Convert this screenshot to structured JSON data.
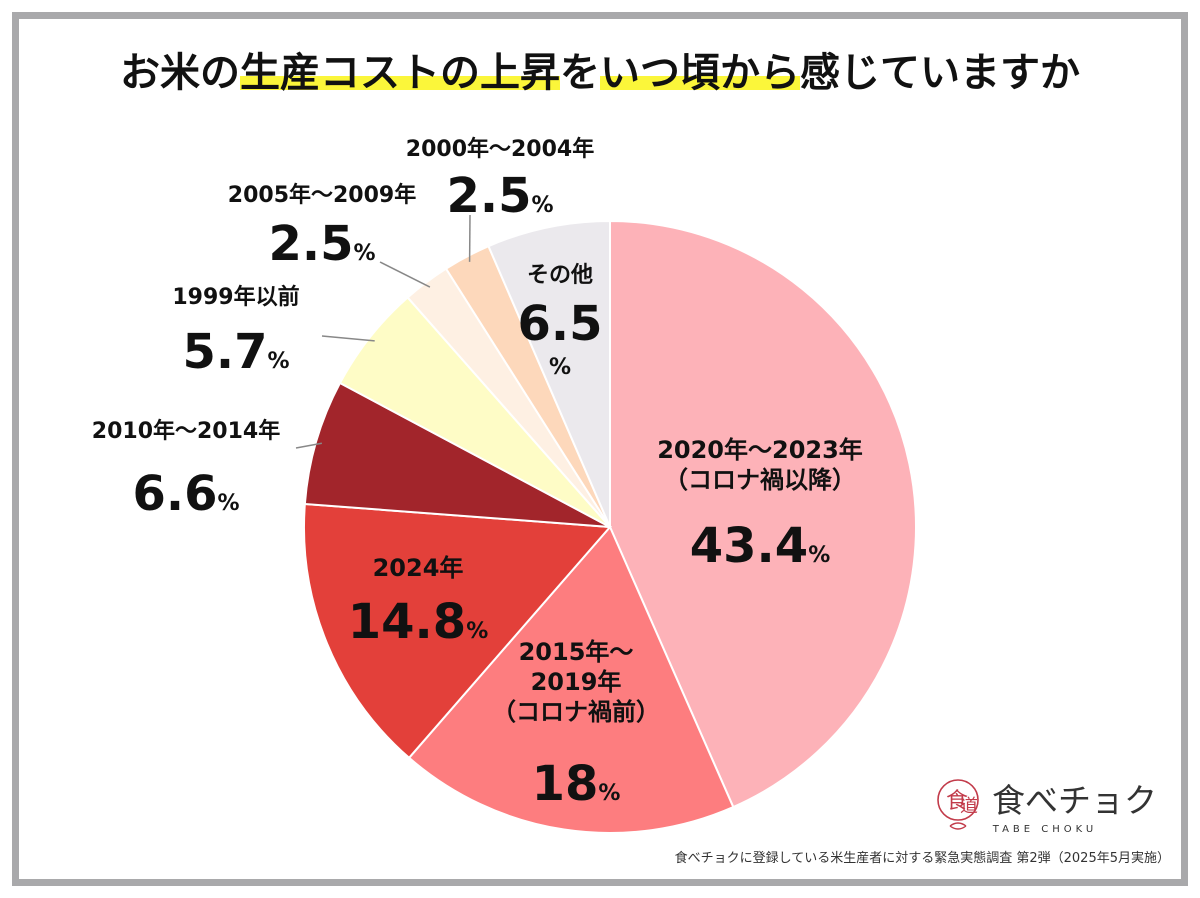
{
  "chart_data": {
    "type": "pie",
    "title_parts": [
      {
        "text": "お米の",
        "highlight": false
      },
      {
        "text": "生産コストの上昇",
        "highlight": true
      },
      {
        "text": "を",
        "highlight": false
      },
      {
        "text": "いつ頃から",
        "highlight": true
      },
      {
        "text": "感じていますか",
        "highlight": false
      }
    ],
    "unit": "%",
    "slices": [
      {
        "label": "2020年～2023年（コロナ禍以降）",
        "value": 43.4,
        "color": "#fdb2b8"
      },
      {
        "label": "2015年～2019年（コロナ禍前）",
        "value": 18,
        "color": "#fd7d7f"
      },
      {
        "label": "2024年",
        "value": 14.8,
        "color": "#e3403a"
      },
      {
        "label": "2010年～2014年",
        "value": 6.6,
        "color": "#a2252b"
      },
      {
        "label": "1999年以前",
        "value": 5.7,
        "color": "#fefcc6"
      },
      {
        "label": "2005年～2009年",
        "value": 2.5,
        "color": "#fef0e3"
      },
      {
        "label": "2000年～2004年",
        "value": 2.5,
        "color": "#fdd8bb"
      },
      {
        "label": "その他",
        "value": 6.5,
        "color": "#ebe9ed"
      }
    ],
    "labels": [
      {
        "lines": [
          "2020年～2023年",
          "（コロナ禍以降）"
        ],
        "value": "43.4"
      },
      {
        "lines": [
          "2015年～",
          "2019年",
          "（コロナ禍前）"
        ],
        "value": "18"
      },
      {
        "lines": [
          "2024年"
        ],
        "value": "14.8"
      },
      {
        "lines": [
          "2010年～2014年"
        ],
        "value": "6.6"
      },
      {
        "lines": [
          "1999年以前"
        ],
        "value": "5.7"
      },
      {
        "lines": [
          "2005年～2009年"
        ],
        "value": "2.5"
      },
      {
        "lines": [
          "2000年～2004年"
        ],
        "value": "2.5"
      },
      {
        "lines": [
          "その他"
        ],
        "value": "6.5"
      }
    ],
    "highlight_color": "#fbf63a"
  },
  "logo": {
    "text": "食べチョク",
    "sub": "TABE CHOKU",
    "color": "#c23b4a"
  },
  "footnote": "食べチョクに登録している米生産者に対する緊急実態調査 第2弾（2025年5月実施）"
}
